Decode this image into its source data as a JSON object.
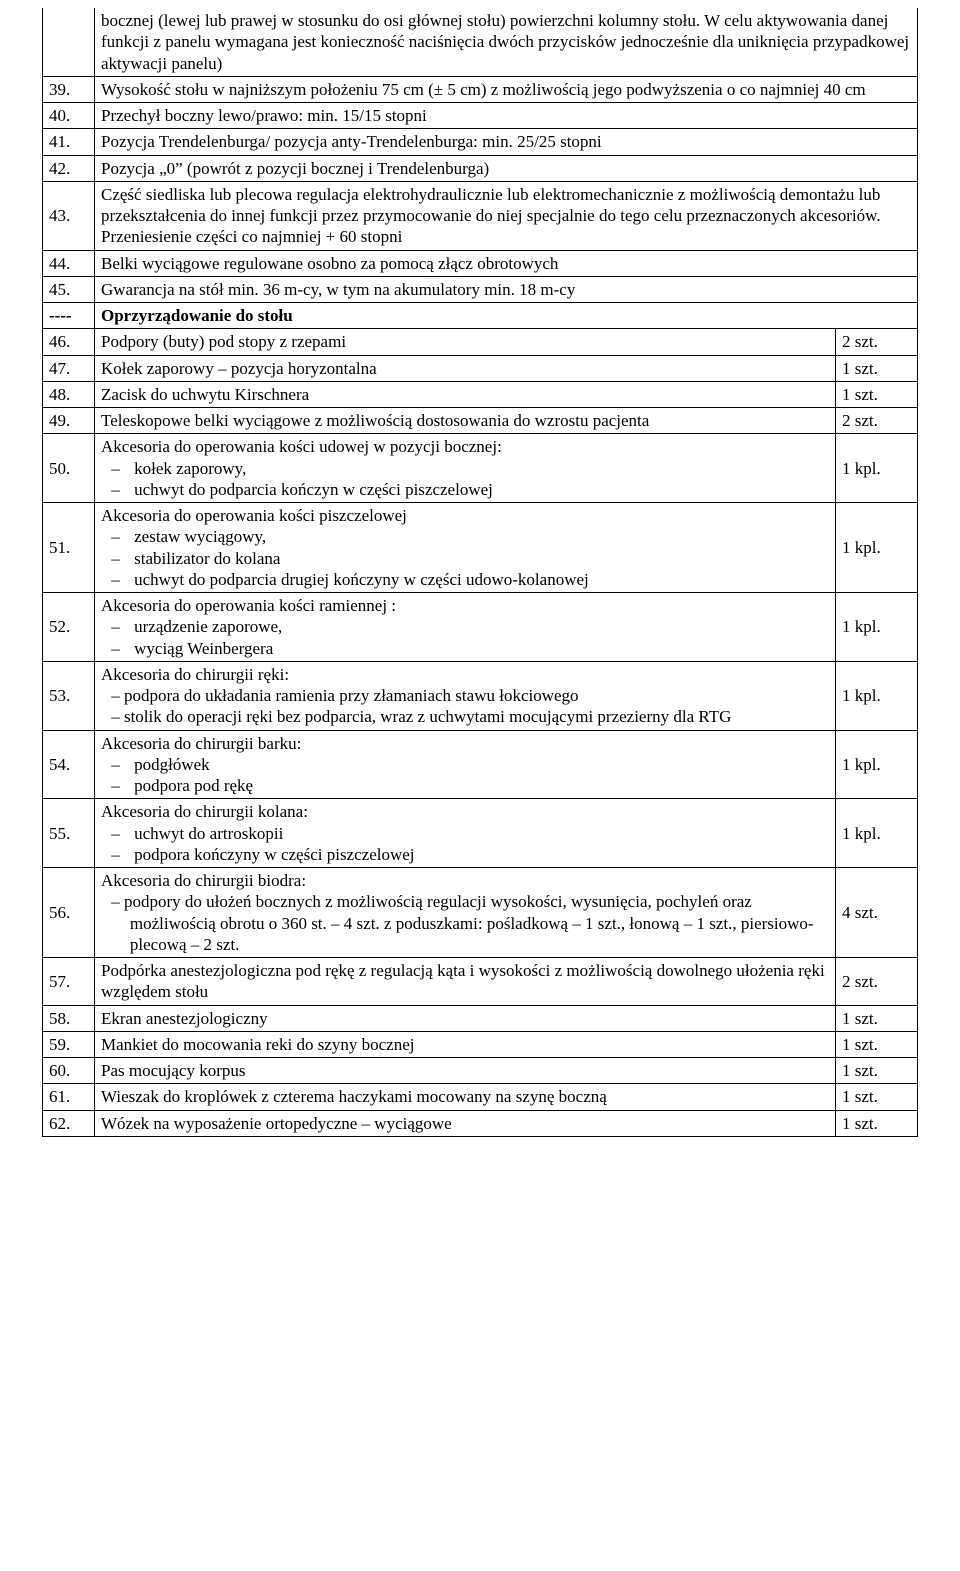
{
  "rows": [
    {
      "num": "",
      "textHtml": "bocznej (lewej lub prawej w stosunku do osi głównej stołu) powierzchni kolumny stołu. W celu aktywowania danej funkcji z panelu wymagana jest konieczność naciśnięcia dwóch przycisków jednocześnie dla uniknięcia przypadkowej aktywacji panelu)",
      "noTop": true
    },
    {
      "num": "39.",
      "textHtml": "Wysokość stołu w najniższym położeniu 75 cm (± 5 cm) z możliwością jego podwyższenia o co najmniej 40 cm"
    },
    {
      "num": "40.",
      "textHtml": "Przechył boczny lewo/prawo: min. 15/15 stopni"
    },
    {
      "num": "41.",
      "textHtml": "Pozycja Trendelenburga/ pozycja anty-Trendelenburga: min. 25/25 stopni"
    },
    {
      "num": "42.",
      "textHtml": "Pozycja „0” (powrót z pozycji bocznej i Trendelenburga)"
    },
    {
      "num": "43.",
      "textHtml": "Część siedliska lub plecowa regulacja elektrohydraulicznie lub elektromechanicznie z możliwością  demontażu lub przekształcenia do innej funkcji przez przymocowanie do niej specjalnie do tego celu przeznaczonych akcesoriów. Przeniesienie części co najmniej + 60 stopni"
    },
    {
      "num": "44.",
      "textHtml": "Belki wyciągowe regulowane osobno za pomocą złącz obrotowych"
    },
    {
      "num": "45.",
      "textHtml": "Gwarancja na stół min. 36 m-cy, w tym na akumulatory min. 18 m-cy"
    },
    {
      "num": "----",
      "textHtml": "Oprzyrządowanie do stołu",
      "bold": true
    },
    {
      "num": "46.",
      "textHtml": "Podpory (buty) pod stopy z rzepami",
      "qty": "2 szt."
    },
    {
      "num": "47.",
      "textHtml": "Kołek zaporowy – pozycja horyzontalna",
      "qty": "1 szt."
    },
    {
      "num": "48.",
      "textHtml": "Zacisk do uchwytu Kirschnera",
      "qty": "1 szt."
    },
    {
      "num": "49.",
      "textHtml": "Teleskopowe belki wyciągowe z możliwością dostosowania do wzrostu pacjenta",
      "qty": "2 szt."
    },
    {
      "num": "50.",
      "textHtml": "Akcesoria do operowania kości udowej w pozycji bocznej:<ul class=\"dash\"><li> kołek zaporowy,</li><li> uchwyt do podparcia kończyn w części piszczelowej</li></ul>",
      "qty": "1 kpl."
    },
    {
      "num": "51.",
      "textHtml": "Akcesoria do operowania kości piszczelowej<ul class=\"dash\"><li> zestaw wyciągowy,</li><li> stabilizator do kolana</li><li>  uchwyt do podparcia drugiej kończyny w części udowo-kolanowej</li></ul>",
      "qty": "1 kpl."
    },
    {
      "num": "52.",
      "textHtml": "Akcesoria do operowania kości ramiennej :<ul class=\"dash\"><li> urządzenie zaporowe,</li><li> wyciąg Weinbergera</li></ul>",
      "qty": "1 kpl."
    },
    {
      "num": "53.",
      "textHtml": "Akcesoria do chirurgii ręki:<div class=\"indent-block\">– podpora do układania ramienia przy złamaniach stawu łokciowego</div><div class=\"indent-block\">– stolik do operacji ręki bez podparcia, wraz z uchwytami mocującymi przezierny dla RTG</div>",
      "qty": "1 kpl."
    },
    {
      "num": "54.",
      "textHtml": "Akcesoria do chirurgii barku:<ul class=\"dash\"><li> podgłówek</li><li> podpora pod rękę</li></ul>",
      "qty": "1 kpl."
    },
    {
      "num": "55.",
      "textHtml": "Akcesoria do chirurgii kolana:<ul class=\"dash\"><li> uchwyt do artroskopii</li><li> podpora kończyny w części piszczelowej</li></ul>",
      "qty": "1 kpl."
    },
    {
      "num": "56.",
      "textHtml": "Akcesoria do chirurgii biodra:<div class=\"indent-block\">–  podpory do ułożeń bocznych z możliwością regulacji wysokości, wysunięcia, pochyleń oraz możliwością obrotu o 360 st. – 4 szt. z poduszkami: pośladkową – 1 szt., łonową – 1 szt., piersiowo-plecową – 2 szt.</div>",
      "qty": "4 szt."
    },
    {
      "num": "57.",
      "textHtml": "Podpórka anestezjologiczna pod rękę z regulacją kąta i wysokości z możliwością dowolnego ułożenia ręki względem stołu",
      "qty": "2 szt."
    },
    {
      "num": "58.",
      "textHtml": "Ekran anestezjologiczny",
      "qty": "1 szt."
    },
    {
      "num": "59.",
      "textHtml": "Mankiet do mocowania reki do szyny bocznej",
      "qty": "1 szt."
    },
    {
      "num": "60.",
      "textHtml": "Pas mocujący korpus",
      "qty": "1 szt."
    },
    {
      "num": "61.",
      "textHtml": "Wieszak do kroplówek z czterema haczykami mocowany na szynę boczną",
      "qty": "1 szt."
    },
    {
      "num": "62.",
      "textHtml": "Wózek na wyposażenie ortopedyczne – wyciągowe",
      "qty": "1 szt."
    }
  ]
}
